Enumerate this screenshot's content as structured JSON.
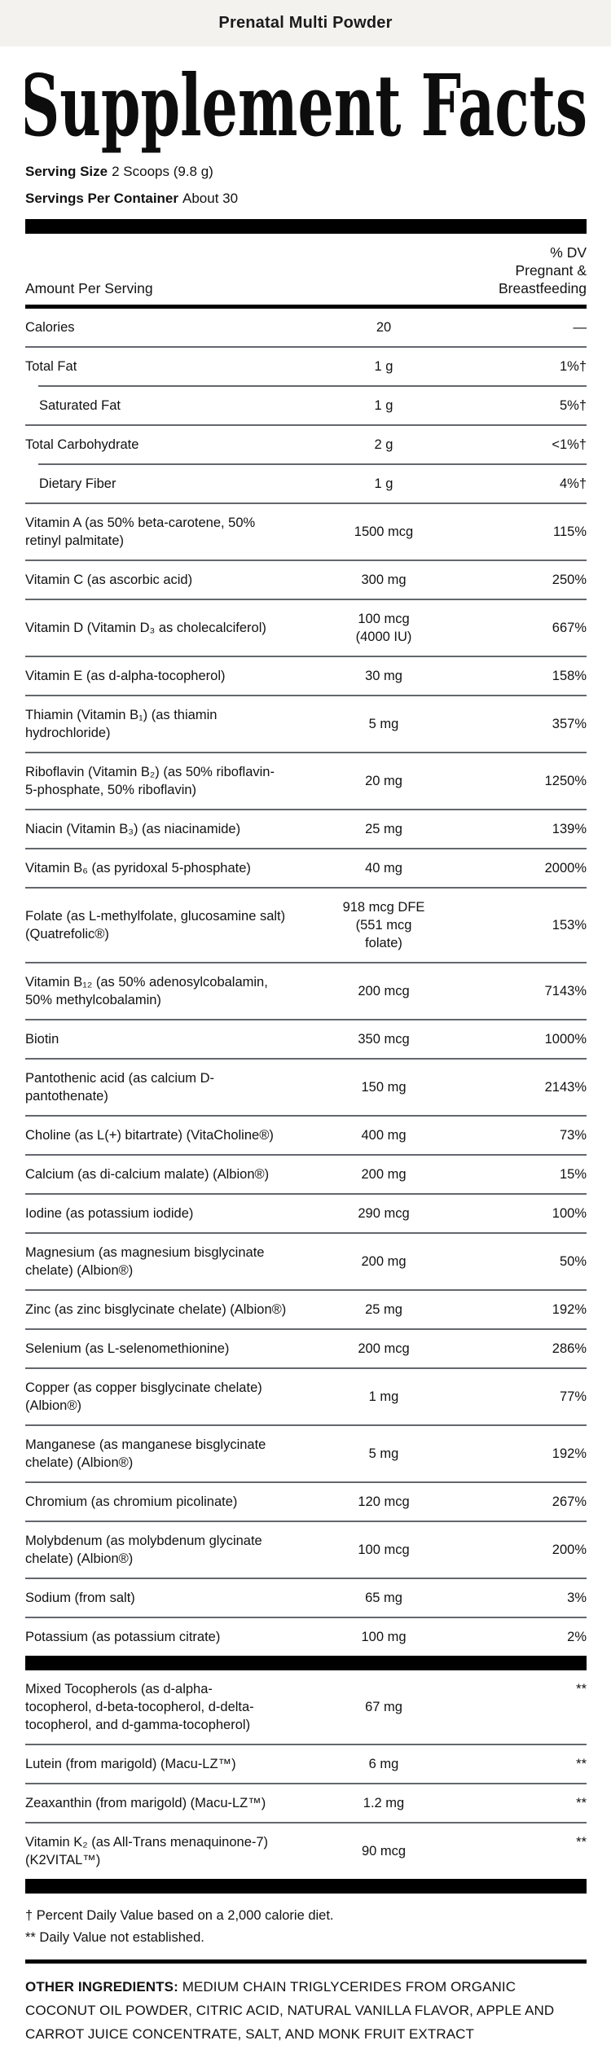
{
  "header_bar": {
    "title": "Prenatal Multi Powder"
  },
  "label": {
    "title": "Supplement Facts",
    "serving_size": {
      "label": "Serving Size",
      "value": "2 Scoops (9.8 g)"
    },
    "servings_per_container": {
      "label": "Servings Per Container",
      "value": "About 30"
    },
    "column_headers": {
      "amount": "Amount Per Serving",
      "dv": "% DV\nPregnant &\nBreastfeeding"
    },
    "rows": [
      {
        "name": "Calories",
        "amount": "20",
        "dv": "—"
      },
      {
        "name": "Total Fat",
        "amount": "1 g",
        "dv": "1%†"
      },
      {
        "name": "Saturated Fat",
        "amount": "1 g",
        "dv": "5%†",
        "indent": true
      },
      {
        "name": "Total Carbohydrate",
        "amount": "2 g",
        "dv": "<1%†"
      },
      {
        "name": "Dietary Fiber",
        "amount": "1 g",
        "dv": "4%†",
        "indent": true
      },
      {
        "name": "Vitamin A (as 50% beta-carotene, 50%\nretinyl palmitate)",
        "amount": "1500 mcg",
        "dv": "115%"
      },
      {
        "name": "Vitamin C (as ascorbic acid)",
        "amount": "300 mg",
        "dv": "250%"
      },
      {
        "name": "Vitamin D (Vitamin D₃ as cholecalciferol)",
        "amount": "100 mcg\n(4000 IU)",
        "dv": "667%"
      },
      {
        "name": "Vitamin E (as d-alpha-tocopherol)",
        "amount": "30 mg",
        "dv": "158%"
      },
      {
        "name": "Thiamin (Vitamin B₁) (as thiamin\nhydrochloride)",
        "amount": "5 mg",
        "dv": "357%"
      },
      {
        "name": "Riboflavin (Vitamin B₂) (as 50% riboflavin-\n5-phosphate, 50% riboflavin)",
        "amount": "20 mg",
        "dv": "1250%"
      },
      {
        "name": "Niacin (Vitamin B₃) (as niacinamide)",
        "amount": "25 mg",
        "dv": "139%"
      },
      {
        "name": "Vitamin B₆ (as pyridoxal 5-phosphate)",
        "amount": "40 mg",
        "dv": "2000%"
      },
      {
        "name": "Folate (as L-methylfolate, glucosamine salt)\n(Quatrefolic®)",
        "amount": "918 mcg DFE\n(551 mcg\nfolate)",
        "dv": "153%"
      },
      {
        "name": "Vitamin B₁₂ (as 50% adenosylcobalamin,\n50% methylcobalamin)",
        "amount": "200 mcg",
        "dv": "7143%"
      },
      {
        "name": "Biotin",
        "amount": "350 mcg",
        "dv": "1000%"
      },
      {
        "name": "Pantothenic acid (as calcium D-\npantothenate)",
        "amount": "150 mg",
        "dv": "2143%"
      },
      {
        "name": "Choline (as L(+) bitartrate) (VitaCholine®)",
        "amount": "400 mg",
        "dv": "73%"
      },
      {
        "name": "Calcium (as di-calcium malate) (Albion®)",
        "amount": "200 mg",
        "dv": "15%"
      },
      {
        "name": "Iodine (as potassium iodide)",
        "amount": "290 mcg",
        "dv": "100%"
      },
      {
        "name": "Magnesium (as magnesium bisglycinate\nchelate) (Albion®)",
        "amount": "200 mg",
        "dv": "50%"
      },
      {
        "name": "Zinc (as zinc bisglycinate chelate) (Albion®)",
        "amount": "25 mg",
        "dv": "192%"
      },
      {
        "name": "Selenium (as L-selenomethionine)",
        "amount": "200 mcg",
        "dv": "286%"
      },
      {
        "name": "Copper (as copper bisglycinate chelate)\n(Albion®)",
        "amount": "1 mg",
        "dv": "77%"
      },
      {
        "name": "Manganese (as manganese bisglycinate\nchelate) (Albion®)",
        "amount": "5 mg",
        "dv": "192%"
      },
      {
        "name": "Chromium (as chromium picolinate)",
        "amount": "120 mcg",
        "dv": "267%"
      },
      {
        "name": "Molybdenum (as molybdenum glycinate\nchelate) (Albion®)",
        "amount": "100 mcg",
        "dv": "200%"
      },
      {
        "name": "Sodium (from salt)",
        "amount": "65 mg",
        "dv": "3%"
      },
      {
        "name": "Potassium (as potassium citrate)",
        "amount": "100 mg",
        "dv": "2%"
      }
    ],
    "extra_rows": [
      {
        "name": "Mixed Tocopherols (as d-alpha-\ntocopherol, d-beta-tocopherol, d-delta-\ntocopherol, and d-gamma-tocopherol)",
        "amount": "67 mg",
        "dv": "**",
        "dv_top": true
      },
      {
        "name": "Lutein (from marigold) (Macu-LZ™)",
        "amount": "6 mg",
        "dv": "**",
        "dv_top": true
      },
      {
        "name": "Zeaxanthin (from marigold) (Macu-LZ™)",
        "amount": "1.2 mg",
        "dv": "**",
        "dv_top": true
      },
      {
        "name": "Vitamin K₂ (as All-Trans menaquinone-7)\n(K2VITAL™)",
        "amount": "90 mcg",
        "dv": "**",
        "dv_top": true
      }
    ],
    "footnotes": [
      "† Percent Daily Value based on a 2,000 calorie diet.",
      "** Daily Value not established."
    ],
    "other_ingredients": {
      "label": "OTHER INGREDIENTS:",
      "text": "MEDIUM CHAIN TRIGLYCERIDES FROM ORGANIC COCONUT OIL POWDER, CITRIC ACID, NATURAL VANILLA FLAVOR, APPLE AND CARROT JUICE CONCENTRATE, SALT, AND MONK FRUIT EXTRACT"
    },
    "colors": {
      "header_band_bg": "#f3f2ef",
      "text": "#121212",
      "divider": "#63676d",
      "section_bar": "#000000"
    }
  }
}
